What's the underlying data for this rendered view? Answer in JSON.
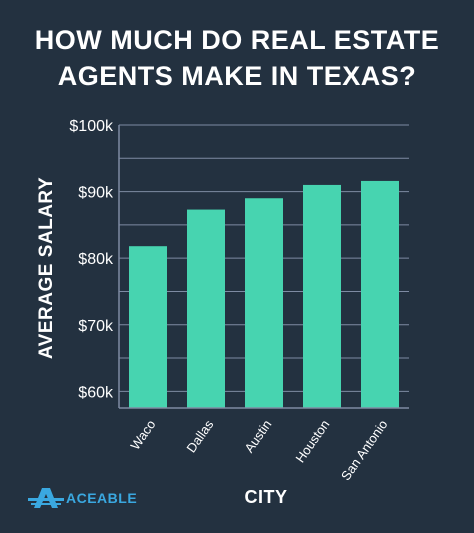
{
  "title_line1": "HOW MUCH DO REAL ESTATE",
  "title_line2": "AGENTS MAKE IN TEXAS?",
  "brand": "ACEABLE",
  "colors": {
    "background": "#233140",
    "bar": "#47d4b0",
    "grid": "#7e8ba3",
    "text": "#ffffff",
    "brand": "#3aa8e0"
  },
  "chart_data": {
    "type": "bar",
    "title": "HOW MUCH DO REAL ESTATE AGENTS MAKE IN TEXAS?",
    "xlabel": "CITY",
    "ylabel": "AVERAGE SALARY",
    "categories": [
      "Waco",
      "Dallas",
      "Austin",
      "Houston",
      "San Antonio"
    ],
    "values": [
      81800,
      87300,
      89000,
      91000,
      91600
    ],
    "ylim": [
      57500,
      100000
    ],
    "yticks": [
      60000,
      70000,
      80000,
      90000,
      100000
    ],
    "ytick_labels": [
      "$60k",
      "$70k",
      "$80k",
      "$90k",
      "$100k"
    ],
    "grid": true
  }
}
